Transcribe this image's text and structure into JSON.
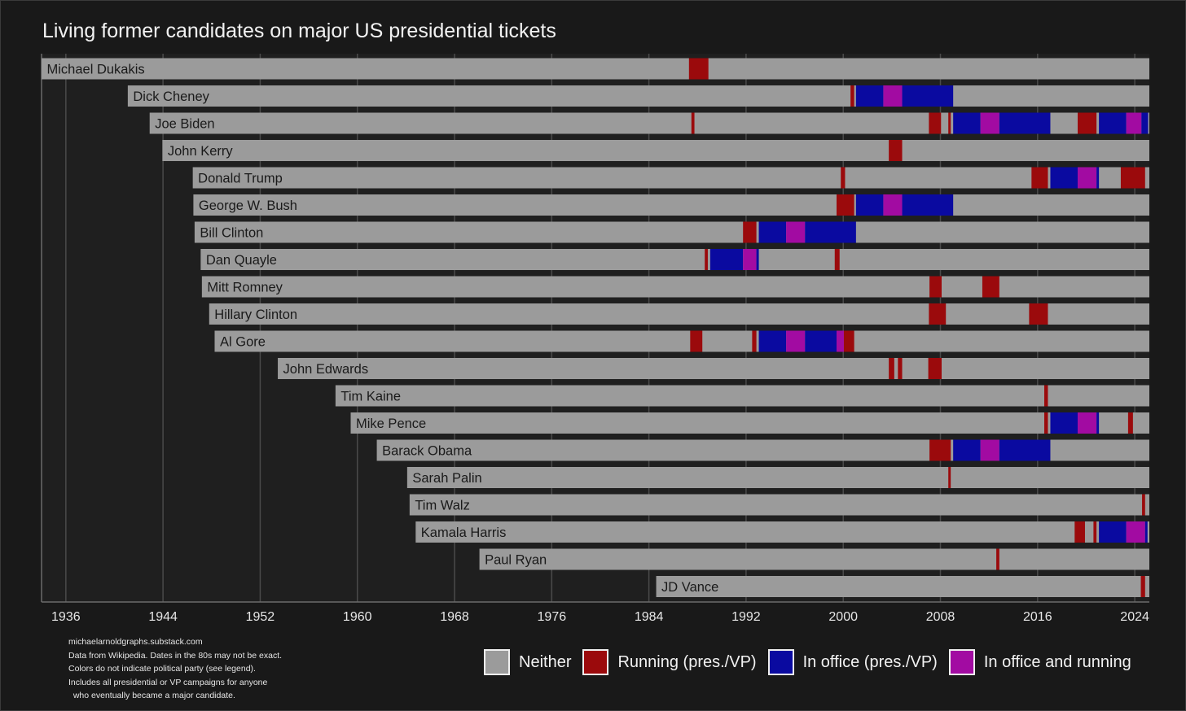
{
  "chart_data": {
    "type": "timeline",
    "title": "Living former candidates on major US presidential tickets",
    "x_ticks": [
      1936,
      1944,
      1952,
      1960,
      1968,
      1976,
      1984,
      1992,
      2000,
      2008,
      2016,
      2024
    ],
    "xlim": [
      1934,
      2025.2
    ],
    "grid": "vertical gridlines at tick years",
    "colors": {
      "neither": "#9b9b9b",
      "running": "#9b0a0c",
      "office": "#0a0aa0",
      "both": "#a20ba2"
    },
    "legend": {
      "placement": "bottom-right",
      "items": [
        {
          "key": "neither",
          "label": "Neither"
        },
        {
          "key": "running",
          "label": "Running (pres./VP)"
        },
        {
          "key": "office",
          "label": "In office (pres./VP)"
        },
        {
          "key": "both",
          "label": "In office and running"
        }
      ]
    },
    "rows": [
      {
        "name": "Michael Dukakis",
        "born": 1933.9,
        "segments": [
          [
            1987.3,
            1988.9,
            "running"
          ]
        ]
      },
      {
        "name": "Dick Cheney",
        "born": 1941.1,
        "segments": [
          [
            2000.6,
            2000.9,
            "running"
          ],
          [
            2001.05,
            2003.3,
            "office"
          ],
          [
            2003.3,
            2004.85,
            "both"
          ],
          [
            2004.85,
            2009.05,
            "office"
          ]
        ]
      },
      {
        "name": "Joe Biden",
        "born": 1942.9,
        "segments": [
          [
            1987.5,
            1987.75,
            "running"
          ],
          [
            2007.05,
            2008.05,
            "running"
          ],
          [
            2008.65,
            2008.85,
            "running"
          ],
          [
            2009.05,
            2011.3,
            "office"
          ],
          [
            2011.3,
            2012.85,
            "both"
          ],
          [
            2012.85,
            2017.05,
            "office"
          ],
          [
            2019.3,
            2020.85,
            "running"
          ],
          [
            2021.05,
            2023.3,
            "office"
          ],
          [
            2023.3,
            2024.55,
            "both"
          ],
          [
            2024.55,
            2025.1,
            "office"
          ]
        ]
      },
      {
        "name": "John Kerry",
        "born": 1943.95,
        "segments": [
          [
            2003.75,
            2004.85,
            "running"
          ]
        ]
      },
      {
        "name": "Donald Trump",
        "born": 1946.45,
        "segments": [
          [
            1999.8,
            2000.15,
            "running"
          ],
          [
            2015.5,
            2016.85,
            "running"
          ],
          [
            2017.05,
            2019.3,
            "office"
          ],
          [
            2019.3,
            2020.85,
            "both"
          ],
          [
            2020.85,
            2021.05,
            "office"
          ],
          [
            2022.85,
            2024.85,
            "running"
          ]
        ]
      },
      {
        "name": "George W. Bush",
        "born": 1946.5,
        "segments": [
          [
            1999.45,
            2000.9,
            "running"
          ],
          [
            2001.05,
            2003.3,
            "office"
          ],
          [
            2003.3,
            2004.85,
            "both"
          ],
          [
            2004.85,
            2009.05,
            "office"
          ]
        ]
      },
      {
        "name": "Bill Clinton",
        "born": 1946.6,
        "segments": [
          [
            1991.75,
            1992.85,
            "running"
          ],
          [
            1993.05,
            1995.3,
            "office"
          ],
          [
            1995.3,
            1996.85,
            "both"
          ],
          [
            1996.85,
            2001.05,
            "office"
          ]
        ]
      },
      {
        "name": "Dan Quayle",
        "born": 1947.1,
        "segments": [
          [
            1988.6,
            1988.85,
            "running"
          ],
          [
            1989.05,
            1991.75,
            "office"
          ],
          [
            1991.75,
            1992.85,
            "both"
          ],
          [
            1992.85,
            1993.05,
            "office"
          ],
          [
            1999.3,
            1999.7,
            "running"
          ]
        ]
      },
      {
        "name": "Mitt Romney",
        "born": 1947.2,
        "segments": [
          [
            2007.1,
            2008.1,
            "running"
          ],
          [
            2011.45,
            2012.85,
            "running"
          ]
        ]
      },
      {
        "name": "Hillary Clinton",
        "born": 1947.8,
        "segments": [
          [
            2007.05,
            2008.45,
            "running"
          ],
          [
            2015.3,
            2016.85,
            "running"
          ]
        ]
      },
      {
        "name": "Al Gore",
        "born": 1948.25,
        "segments": [
          [
            1987.4,
            1988.4,
            "running"
          ],
          [
            1992.5,
            1992.85,
            "running"
          ],
          [
            1993.05,
            1995.3,
            "office"
          ],
          [
            1995.3,
            1996.85,
            "both"
          ],
          [
            1996.85,
            1999.45,
            "office"
          ],
          [
            1999.45,
            2000.05,
            "both"
          ],
          [
            2000.05,
            2000.9,
            "running"
          ]
        ]
      },
      {
        "name": "John Edwards",
        "born": 1953.45,
        "segments": [
          [
            2003.75,
            2004.2,
            "running"
          ],
          [
            2004.5,
            2004.85,
            "running"
          ],
          [
            2007.0,
            2008.1,
            "running"
          ]
        ]
      },
      {
        "name": "Tim Kaine",
        "born": 1958.2,
        "segments": [
          [
            2016.55,
            2016.85,
            "running"
          ]
        ]
      },
      {
        "name": "Mike Pence",
        "born": 1959.45,
        "segments": [
          [
            2016.55,
            2016.85,
            "running"
          ],
          [
            2017.05,
            2019.3,
            "office"
          ],
          [
            2019.3,
            2020.85,
            "both"
          ],
          [
            2020.85,
            2021.05,
            "office"
          ],
          [
            2023.45,
            2023.85,
            "running"
          ]
        ]
      },
      {
        "name": "Barack Obama",
        "born": 1961.6,
        "segments": [
          [
            2007.1,
            2008.85,
            "running"
          ],
          [
            2009.05,
            2011.3,
            "office"
          ],
          [
            2011.3,
            2012.85,
            "both"
          ],
          [
            2012.85,
            2017.05,
            "office"
          ]
        ]
      },
      {
        "name": "Sarah Palin",
        "born": 1964.1,
        "segments": [
          [
            2008.65,
            2008.85,
            "running"
          ]
        ]
      },
      {
        "name": "Tim Walz",
        "born": 1964.3,
        "segments": [
          [
            2024.6,
            2024.85,
            "running"
          ]
        ]
      },
      {
        "name": "Kamala Harris",
        "born": 1964.8,
        "segments": [
          [
            2019.05,
            2019.9,
            "running"
          ],
          [
            2020.6,
            2020.85,
            "running"
          ],
          [
            2021.05,
            2023.3,
            "office"
          ],
          [
            2023.3,
            2024.85,
            "both"
          ],
          [
            2024.85,
            2025.05,
            "office"
          ]
        ]
      },
      {
        "name": "Paul Ryan",
        "born": 1970.05,
        "segments": [
          [
            2012.6,
            2012.85,
            "running"
          ]
        ]
      },
      {
        "name": "JD Vance",
        "born": 1984.6,
        "segments": [
          [
            2024.5,
            2024.85,
            "running"
          ]
        ]
      }
    ]
  },
  "footnote": [
    "michaelarnoldgraphs.substack.com",
    "Data from Wikipedia. Dates in the 80s may not be exact.",
    "Colors do not indicate political party (see legend).",
    "Includes all presidential or VP campaigns for anyone",
    "  who eventually became a major candidate."
  ]
}
